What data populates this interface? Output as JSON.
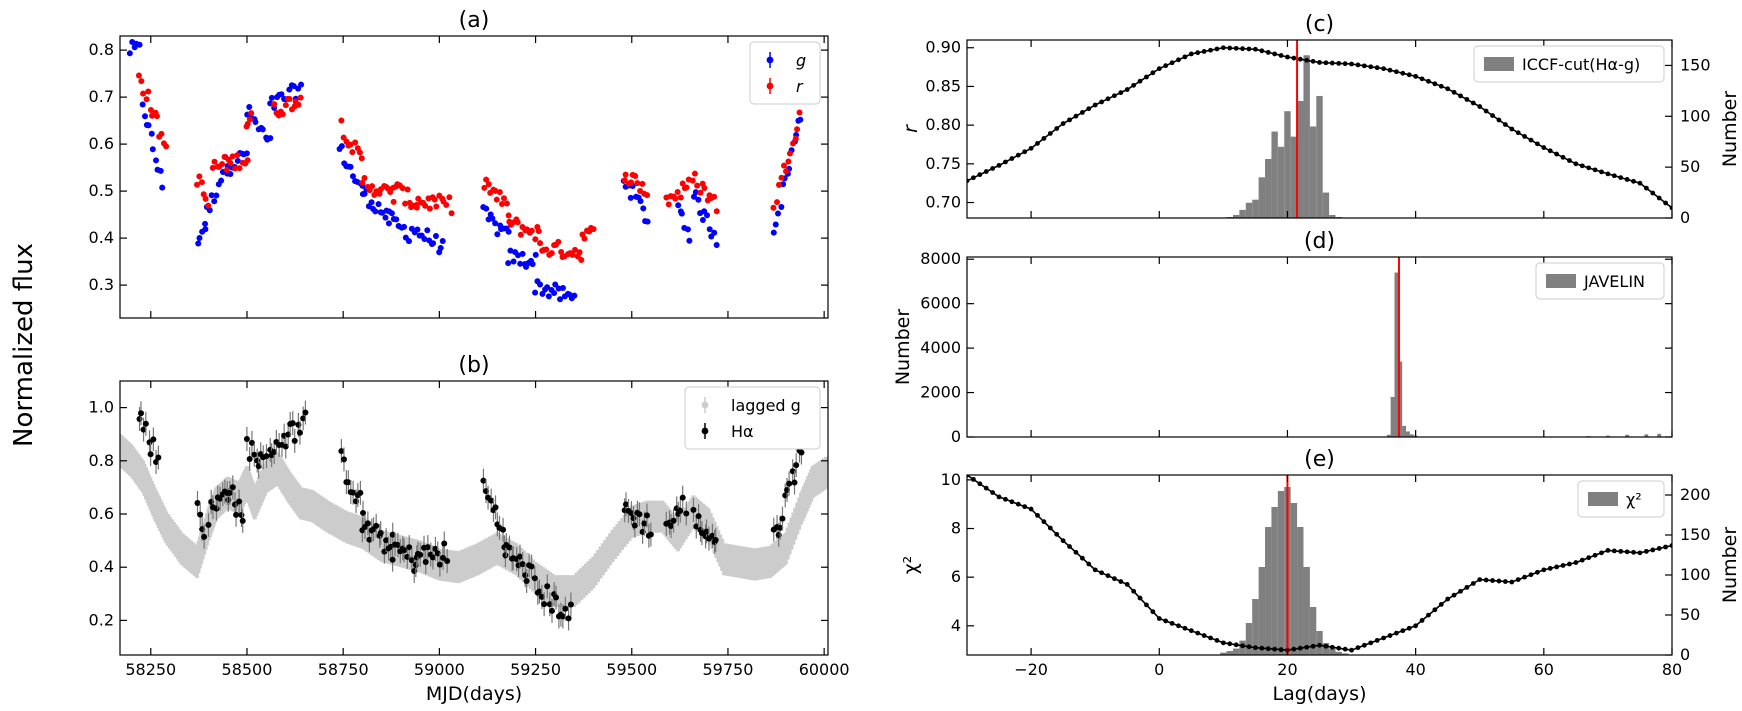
{
  "figure": {
    "ylabel": "Normalized flux"
  },
  "chart_data": [
    {
      "id": "a",
      "type": "scatter",
      "title": "(a)",
      "xlim": [
        58170,
        60010
      ],
      "ylim": [
        0.23,
        0.83
      ],
      "xticks": [
        58250,
        58500,
        58750,
        59000,
        59250,
        59500,
        59750,
        60000
      ],
      "xtick_labels": [],
      "yticks": [
        0.3,
        0.4,
        0.5,
        0.6,
        0.7,
        0.8
      ],
      "ytick_labels": [
        "0.3",
        "0.4",
        "0.5",
        "0.6",
        "0.7",
        "0.8"
      ],
      "xlabel": "",
      "ylabel": "",
      "legend_position": "top-right",
      "series": [
        {
          "name": "g",
          "color": "#0000ff",
          "segments": [
            {
              "x": [
                58195,
                58220
              ],
              "y": [
                0.8,
                0.8
              ]
            },
            {
              "x": [
                58228,
                58280
              ],
              "y": [
                0.69,
                0.51
              ]
            },
            {
              "x": [
                58372,
                58390
              ],
              "y": [
                0.4,
                0.42
              ]
            },
            {
              "x": [
                58390,
                58450
              ],
              "y": [
                0.44,
                0.57
              ]
            },
            {
              "x": [
                58450,
                58500
              ],
              "y": [
                0.55,
                0.58
              ]
            },
            {
              "x": [
                58500,
                58560
              ],
              "y": [
                0.67,
                0.6
              ]
            },
            {
              "x": [
                58560,
                58640
              ],
              "y": [
                0.68,
                0.72
              ]
            },
            {
              "x": [
                58740,
                58800
              ],
              "y": [
                0.59,
                0.5
              ]
            },
            {
              "x": [
                58800,
                58870
              ],
              "y": [
                0.5,
                0.44
              ]
            },
            {
              "x": [
                58870,
                58920
              ],
              "y": [
                0.44,
                0.41
              ]
            },
            {
              "x": [
                58930,
                59010
              ],
              "y": [
                0.42,
                0.38
              ]
            },
            {
              "x": [
                59115,
                59180
              ],
              "y": [
                0.45,
                0.4
              ]
            },
            {
              "x": [
                59180,
                59250
              ],
              "y": [
                0.36,
                0.35
              ]
            },
            {
              "x": [
                59250,
                59350
              ],
              "y": [
                0.3,
                0.27
              ]
            },
            {
              "x": [
                59480,
                59540
              ],
              "y": [
                0.53,
                0.44
              ]
            },
            {
              "x": [
                59620,
                59650
              ],
              "y": [
                0.47,
                0.41
              ]
            },
            {
              "x": [
                59660,
                59720
              ],
              "y": [
                0.49,
                0.4
              ]
            },
            {
              "x": [
                59870,
                59940
              ],
              "y": [
                0.42,
                0.66
              ]
            }
          ]
        },
        {
          "name": "r",
          "color": "#ff0000",
          "segments": [
            {
              "x": [
                58220,
                58290
              ],
              "y": [
                0.75,
                0.59
              ]
            },
            {
              "x": [
                58370,
                58400
              ],
              "y": [
                0.53,
                0.47
              ]
            },
            {
              "x": [
                58410,
                58500
              ],
              "y": [
                0.55,
                0.57
              ]
            },
            {
              "x": [
                58500,
                58510
              ],
              "y": [
                0.64,
                0.66
              ]
            },
            {
              "x": [
                58570,
                58640
              ],
              "y": [
                0.67,
                0.7
              ]
            },
            {
              "x": [
                58745,
                58800
              ],
              "y": [
                0.64,
                0.56
              ]
            },
            {
              "x": [
                58800,
                58880
              ],
              "y": [
                0.52,
                0.49
              ]
            },
            {
              "x": [
                58880,
                58940
              ],
              "y": [
                0.51,
                0.47
              ]
            },
            {
              "x": [
                58940,
                59030
              ],
              "y": [
                0.48,
                0.47
              ]
            },
            {
              "x": [
                59115,
                59180
              ],
              "y": [
                0.52,
                0.46
              ]
            },
            {
              "x": [
                59180,
                59260
              ],
              "y": [
                0.43,
                0.41
              ]
            },
            {
              "x": [
                59260,
                59370
              ],
              "y": [
                0.38,
                0.37
              ]
            },
            {
              "x": [
                59370,
                59400
              ],
              "y": [
                0.4,
                0.41
              ]
            },
            {
              "x": [
                59480,
                59540
              ],
              "y": [
                0.54,
                0.5
              ]
            },
            {
              "x": [
                59590,
                59650
              ],
              "y": [
                0.48,
                0.51
              ]
            },
            {
              "x": [
                59660,
                59720
              ],
              "y": [
                0.53,
                0.47
              ]
            },
            {
              "x": [
                59870,
                59950
              ],
              "y": [
                0.47,
                0.7
              ]
            }
          ]
        }
      ]
    },
    {
      "id": "b",
      "type": "scatter",
      "title": "(b)",
      "xlim": [
        58170,
        60010
      ],
      "ylim": [
        0.07,
        1.1
      ],
      "xticks": [
        58250,
        58500,
        58750,
        59000,
        59250,
        59500,
        59750,
        60000
      ],
      "xtick_labels": [
        "58250",
        "58500",
        "58750",
        "59000",
        "59250",
        "59500",
        "59750",
        "60000"
      ],
      "yticks": [
        0.2,
        0.4,
        0.6,
        0.8,
        1.0
      ],
      "ytick_labels": [
        "0.2",
        "0.4",
        "0.6",
        "0.8",
        "1.0"
      ],
      "xlabel": "MJD(days)",
      "ylabel": "",
      "legend_position": "top-right",
      "series": [
        {
          "name": "lagged g",
          "color": "#cccccc",
          "x": [
            58170,
            58200,
            58230,
            58260,
            58290,
            58330,
            58370,
            58400,
            58420,
            58450,
            58480,
            58500,
            58520,
            58550,
            58580,
            58610,
            58640,
            58670,
            58710,
            58760,
            58800,
            58850,
            58900,
            58950,
            59000,
            59050,
            59100,
            59150,
            59200,
            59250,
            59300,
            59350,
            59400,
            59450,
            59500,
            59540,
            59580,
            59620,
            59660,
            59700,
            59740,
            59780,
            59820,
            59860,
            59900,
            59940,
            59970,
            60010
          ],
          "y": [
            0.84,
            0.8,
            0.74,
            0.64,
            0.55,
            0.47,
            0.42,
            0.56,
            0.64,
            0.68,
            0.66,
            0.72,
            0.64,
            0.74,
            0.77,
            0.7,
            0.64,
            0.63,
            0.59,
            0.55,
            0.53,
            0.48,
            0.46,
            0.44,
            0.41,
            0.4,
            0.43,
            0.47,
            0.43,
            0.36,
            0.31,
            0.31,
            0.38,
            0.48,
            0.57,
            0.59,
            0.59,
            0.52,
            0.61,
            0.56,
            0.43,
            0.42,
            0.41,
            0.42,
            0.47,
            0.62,
            0.72,
            0.76
          ]
        },
        {
          "name": "Hα",
          "color": "#000000",
          "segments": [
            {
              "x": [
                58220,
                58270
              ],
              "y": [
                0.98,
                0.8
              ]
            },
            {
              "x": [
                58370,
                58390
              ],
              "y": [
                0.65,
                0.52
              ]
            },
            {
              "x": [
                58400,
                58450
              ],
              "y": [
                0.6,
                0.68
              ]
            },
            {
              "x": [
                58450,
                58490
              ],
              "y": [
                0.72,
                0.56
              ]
            },
            {
              "x": [
                58500,
                58550
              ],
              "y": [
                0.86,
                0.78
              ]
            },
            {
              "x": [
                58560,
                58650
              ],
              "y": [
                0.85,
                0.94
              ]
            },
            {
              "x": [
                58745,
                58800
              ],
              "y": [
                0.8,
                0.62
              ]
            },
            {
              "x": [
                58800,
                58880
              ],
              "y": [
                0.55,
                0.47
              ]
            },
            {
              "x": [
                58880,
                58940
              ],
              "y": [
                0.48,
                0.42
              ]
            },
            {
              "x": [
                58940,
                59020
              ],
              "y": [
                0.44,
                0.45
              ]
            },
            {
              "x": [
                59115,
                59170
              ],
              "y": [
                0.7,
                0.52
              ]
            },
            {
              "x": [
                59170,
                59240
              ],
              "y": [
                0.46,
                0.37
              ]
            },
            {
              "x": [
                59250,
                59340
              ],
              "y": [
                0.32,
                0.22
              ]
            },
            {
              "x": [
                59480,
                59550
              ],
              "y": [
                0.62,
                0.55
              ]
            },
            {
              "x": [
                59590,
                59640
              ],
              "y": [
                0.55,
                0.64
              ]
            },
            {
              "x": [
                59660,
                59720
              ],
              "y": [
                0.58,
                0.5
              ]
            },
            {
              "x": [
                59870,
                59940
              ],
              "y": [
                0.5,
                0.85
              ]
            }
          ]
        }
      ]
    },
    {
      "id": "c",
      "type": "line+histogram",
      "title": "(c)",
      "xlim": [
        -30,
        80
      ],
      "ylim": [
        0.68,
        0.91
      ],
      "y2lim": [
        0,
        175
      ],
      "xticks": [
        -20,
        0,
        20,
        40,
        60,
        80
      ],
      "xtick_labels": [],
      "yticks": [
        0.7,
        0.75,
        0.8,
        0.85,
        0.9
      ],
      "ytick_labels": [
        "0.70",
        "0.75",
        "0.80",
        "0.85",
        "0.90"
      ],
      "y2ticks": [
        0,
        50,
        100,
        150
      ],
      "y2tick_labels": [
        "0",
        "50",
        "100",
        "150"
      ],
      "xlabel": "",
      "ylabel": "r",
      "y2label": "Number",
      "legend_position": "top-right",
      "vline": 21.5,
      "vline_color": "#ff0000",
      "line": {
        "name": "r",
        "color": "#000000",
        "x": [
          -30,
          -25,
          -20,
          -15,
          -10,
          -5,
          0,
          5,
          10,
          15,
          20,
          25,
          30,
          35,
          40,
          45,
          50,
          55,
          60,
          65,
          70,
          75,
          80
        ],
        "y": [
          0.728,
          0.748,
          0.77,
          0.802,
          0.826,
          0.846,
          0.873,
          0.892,
          0.9,
          0.898,
          0.888,
          0.881,
          0.879,
          0.873,
          0.863,
          0.847,
          0.824,
          0.795,
          0.771,
          0.75,
          0.737,
          0.725,
          0.693
        ]
      },
      "histogram": {
        "name": "ICCF-cut(Hα-g)",
        "color": "#808080",
        "bin_width": 1,
        "bins": [
          11,
          12,
          13,
          14,
          15,
          16,
          17,
          18,
          19,
          20,
          21,
          22,
          23,
          24,
          25,
          26,
          27,
          28
        ],
        "counts": [
          1,
          3,
          8,
          15,
          18,
          40,
          58,
          85,
          70,
          105,
          80,
          115,
          160,
          90,
          120,
          25,
          3,
          1
        ]
      }
    },
    {
      "id": "d",
      "type": "histogram",
      "title": "(d)",
      "xlim": [
        -30,
        80
      ],
      "ylim": [
        0,
        8100
      ],
      "xticks": [
        -20,
        0,
        20,
        40,
        60,
        80
      ],
      "xtick_labels": [],
      "yticks": [
        0,
        2000,
        4000,
        6000,
        8000
      ],
      "ytick_labels": [
        "0",
        "2000",
        "4000",
        "6000",
        "8000"
      ],
      "xlabel": "",
      "ylabel": "Number",
      "legend_position": "top-right",
      "vline": 37.4,
      "vline_color": "#ff0000",
      "histogram": {
        "name": "JAVELIN",
        "color": "#808080",
        "bin_width": 0.6,
        "bins": [
          35.8,
          36.4,
          37.0,
          37.6,
          38.2,
          38.8,
          39.4,
          40.0,
          40.6,
          67.0,
          70.0,
          73.0,
          76.0,
          78.0
        ],
        "counts": [
          100,
          1800,
          7400,
          3400,
          500,
          250,
          120,
          60,
          20,
          40,
          60,
          100,
          120,
          140
        ]
      }
    },
    {
      "id": "e",
      "type": "line+histogram",
      "title": "(e)",
      "xlim": [
        -30,
        80
      ],
      "ylim": [
        2.8,
        10.2
      ],
      "y2lim": [
        0,
        225
      ],
      "xticks": [
        -20,
        0,
        20,
        40,
        60,
        80
      ],
      "xtick_labels": [
        "−20",
        "0",
        "20",
        "40",
        "60",
        "80"
      ],
      "yticks": [
        4,
        6,
        8,
        10
      ],
      "ytick_labels": [
        "4",
        "6",
        "8",
        "10"
      ],
      "y2ticks": [
        0,
        50,
        100,
        150,
        200
      ],
      "y2tick_labels": [
        "0",
        "50",
        "100",
        "150",
        "200"
      ],
      "xlabel": "Lag(days)",
      "ylabel": "χ²",
      "y2label": "Number",
      "legend_position": "top-right",
      "vline": 20,
      "vline_color": "#ff0000",
      "line": {
        "name": "χ²",
        "color": "#000000",
        "x": [
          -30,
          -25,
          -20,
          -15,
          -10,
          -5,
          0,
          5,
          10,
          15,
          20,
          25,
          30,
          35,
          40,
          45,
          50,
          55,
          60,
          65,
          70,
          75,
          80
        ],
        "y": [
          10.2,
          9.3,
          8.8,
          7.5,
          6.3,
          5.7,
          4.3,
          3.8,
          3.3,
          3.1,
          3.0,
          3.2,
          3.0,
          3.5,
          4.0,
          5.1,
          5.9,
          5.8,
          6.3,
          6.6,
          7.1,
          7.0,
          7.3
        ]
      },
      "histogram": {
        "name": "χ²",
        "color": "#808080",
        "bin_width": 1,
        "bins": [
          10,
          11,
          12,
          13,
          14,
          15,
          16,
          17,
          18,
          19,
          20,
          21,
          22,
          23,
          24,
          25,
          26,
          27,
          28,
          29
        ],
        "counts": [
          3,
          5,
          8,
          18,
          40,
          70,
          110,
          160,
          185,
          205,
          210,
          190,
          160,
          110,
          60,
          30,
          15,
          8,
          4,
          2
        ]
      }
    }
  ]
}
